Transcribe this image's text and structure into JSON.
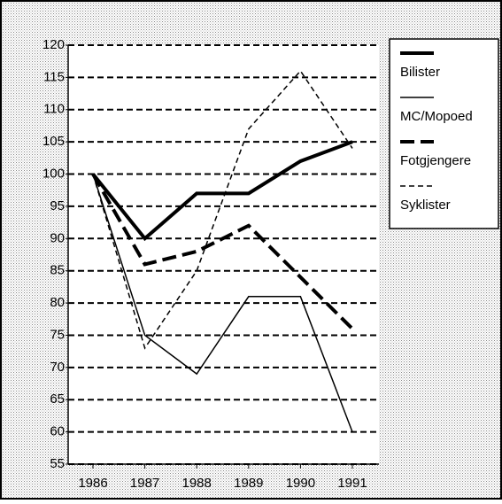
{
  "chart_data": {
    "type": "line",
    "categories": [
      "1986",
      "1987",
      "1988",
      "1989",
      "1990",
      "1991"
    ],
    "series": [
      {
        "name": "Bilister",
        "color": "#000000",
        "weight": "thick",
        "style": "solid",
        "values": [
          100,
          90,
          97,
          97,
          102,
          105
        ]
      },
      {
        "name": "MC/Mopoed",
        "color": "#000000",
        "weight": "thin",
        "style": "solid",
        "values": [
          100,
          75,
          69,
          81,
          81,
          60
        ]
      },
      {
        "name": "Fotgjengere",
        "color": "#000000",
        "weight": "thick",
        "style": "dashed",
        "values": [
          100,
          86,
          88,
          92,
          84,
          76
        ]
      },
      {
        "name": "Syklister",
        "color": "#000000",
        "weight": "thin",
        "style": "dashed",
        "values": [
          100,
          73,
          85,
          107,
          116,
          104
        ]
      }
    ],
    "ylim": [
      55,
      120
    ],
    "yticks": [
      55,
      60,
      65,
      70,
      75,
      80,
      85,
      90,
      95,
      100,
      105,
      110,
      115,
      120
    ],
    "grid": true,
    "legend": "right"
  }
}
